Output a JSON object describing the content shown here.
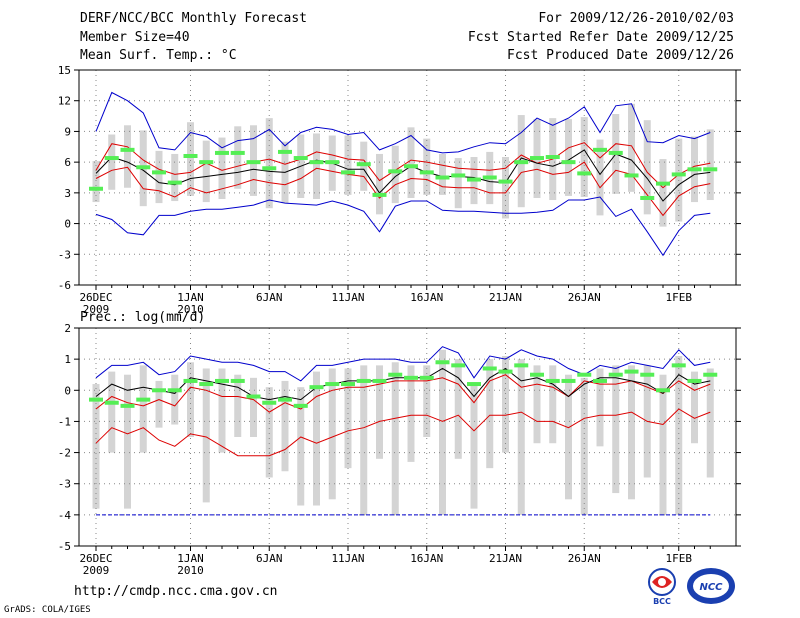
{
  "header": {
    "title": "DERF/NCC/BCC Monthly Forecast",
    "member": "Member Size=40",
    "variable": "Mean Surf. Temp.: °C",
    "period": "For 2009/12/26-2010/02/03",
    "started": "Fcst Started Refer Date 2009/12/25",
    "produced": "Fcst Produced Date 2009/12/26"
  },
  "footer": {
    "url": "http://cmdp.ncc.cma.gov.cn",
    "credit": "GrADS: COLA/IGES",
    "logo_bcc": "BCC",
    "logo_ncc": "NCC"
  },
  "colors": {
    "box": "#d4d4d4",
    "ensemble_mean": "#000000",
    "std_band": "#dd0000",
    "extremes": "#0000cc",
    "climatology": "#55ee55",
    "grid": "#888888"
  },
  "chart_data": [
    {
      "type": "line",
      "title": "Mean Surf. Temp.: °C",
      "ylim": [
        -6,
        15
      ],
      "yticks": [
        -6,
        -3,
        0,
        3,
        6,
        9,
        12,
        15
      ],
      "x_tick_labels": [
        {
          "day": 0,
          "label": "26DEC",
          "sub": "2009"
        },
        {
          "day": 6,
          "label": "1JAN",
          "sub": "2010"
        },
        {
          "day": 11,
          "label": "6JAN",
          "sub": ""
        },
        {
          "day": 16,
          "label": "11JAN",
          "sub": ""
        },
        {
          "day": 21,
          "label": "16JAN",
          "sub": ""
        },
        {
          "day": 26,
          "label": "21JAN",
          "sub": ""
        },
        {
          "day": 31,
          "label": "26JAN",
          "sub": ""
        },
        {
          "day": 37,
          "label": "1FEB",
          "sub": ""
        }
      ],
      "n_days": 40,
      "series": [
        {
          "name": "max",
          "values": [
            0.9,
            0.4,
            -0.9,
            -1.1,
            0.8,
            0.8,
            1.2,
            1.4,
            1.4,
            1.6,
            1.8,
            2.3,
            2.0,
            1.9,
            1.8,
            2.2,
            1.8,
            1.2,
            -0.8,
            1.7,
            2.2,
            2.2,
            1.3,
            1.2,
            1.2,
            1.1,
            1.0,
            1.0,
            1.1,
            1.3,
            2.3,
            2.3,
            2.6,
            0.7,
            1.4,
            -0.8,
            -3.1,
            -0.7,
            0.8,
            1.0
          ]
        },
        {
          "name": "upper_std",
          "values": [
            5.2,
            7.8,
            7.5,
            6.2,
            5.3,
            4.8,
            5.0,
            5.9,
            5.2,
            5.6,
            6.0,
            6.3,
            5.8,
            6.3,
            7.0,
            6.7,
            6.3,
            6.2,
            4.2,
            5.2,
            6.2,
            6.0,
            5.7,
            5.4,
            5.3,
            5.2,
            5.4,
            6.7,
            5.9,
            6.3,
            7.4,
            7.9,
            6.4,
            7.8,
            7.6,
            5.0,
            3.5,
            4.8,
            5.6,
            5.9
          ]
        },
        {
          "name": "mean",
          "values": [
            4.9,
            6.5,
            6.0,
            5.2,
            4.0,
            3.8,
            4.4,
            4.6,
            4.8,
            5.0,
            5.3,
            5.1,
            5.0,
            5.6,
            6.2,
            5.9,
            5.3,
            5.3,
            3.0,
            4.6,
            5.6,
            5.0,
            4.6,
            4.6,
            4.5,
            4.1,
            4.0,
            6.4,
            5.9,
            5.6,
            6.2,
            7.2,
            4.8,
            6.8,
            6.2,
            4.4,
            2.2,
            3.8,
            4.8,
            5.0
          ]
        },
        {
          "name": "lower_std",
          "values": [
            4.4,
            5.2,
            5.5,
            3.4,
            3.2,
            2.6,
            3.5,
            3.0,
            3.4,
            3.8,
            4.3,
            4.0,
            3.8,
            4.4,
            5.4,
            5.1,
            4.8,
            4.6,
            2.5,
            3.8,
            4.4,
            4.3,
            3.6,
            3.5,
            3.5,
            3.0,
            3.0,
            5.0,
            5.3,
            4.8,
            5.0,
            6.0,
            3.5,
            5.2,
            4.8,
            2.8,
            0.8,
            2.7,
            3.6,
            3.9
          ]
        },
        {
          "name": "min",
          "values": [
            9.0,
            12.8,
            12.0,
            10.8,
            7.4,
            7.2,
            8.9,
            8.5,
            7.4,
            8.1,
            8.3,
            9.2,
            7.6,
            8.9,
            9.4,
            9.2,
            8.7,
            8.9,
            7.2,
            7.8,
            8.6,
            7.2,
            6.9,
            7.0,
            7.5,
            7.9,
            7.8,
            8.9,
            10.3,
            9.6,
            10.3,
            11.4,
            8.9,
            11.5,
            11.7,
            8.0,
            7.9,
            8.6,
            8.3,
            8.9
          ]
        },
        {
          "name": "climatology",
          "values": [
            3.4,
            6.4,
            7.2,
            5.5,
            5.0,
            4.0,
            6.6,
            6.0,
            6.9,
            6.9,
            6.0,
            5.4,
            7.0,
            6.4,
            6.0,
            6.0,
            5.0,
            5.8,
            2.8,
            5.1,
            5.6,
            5.0,
            4.5,
            4.7,
            4.3,
            4.5,
            4.1,
            6.0,
            6.4,
            6.5,
            6.0,
            4.9,
            7.2,
            6.9,
            4.7,
            2.5,
            3.9,
            4.8,
            5.3,
            5.3
          ]
        }
      ],
      "box_low": [
        2.1,
        3.3,
        3.5,
        1.7,
        2.0,
        2.2,
        2.7,
        2.1,
        2.4,
        3.4,
        2.7,
        1.5,
        2.0,
        2.5,
        2.4,
        3.2,
        2.8,
        3.2,
        0.9,
        2.0,
        2.5,
        2.8,
        2.8,
        1.5,
        1.9,
        1.9,
        0.5,
        1.6,
        2.5,
        2.3,
        2.7,
        2.6,
        0.8,
        2.9,
        3.1,
        0.9,
        -0.3,
        0.2,
        2.1,
        2.3
      ],
      "box_high": [
        6.1,
        8.7,
        9.6,
        9.1,
        7.1,
        6.8,
        9.9,
        8.1,
        8.4,
        9.5,
        9.6,
        10.3,
        8.0,
        8.7,
        8.8,
        8.6,
        8.6,
        8.0,
        6.8,
        7.6,
        9.4,
        8.3,
        6.8,
        6.4,
        6.5,
        7.0,
        6.5,
        10.6,
        10.2,
        10.3,
        10.2,
        10.4,
        8.2,
        10.7,
        11.7,
        10.1,
        6.3,
        8.3,
        8.5,
        9.2
      ]
    },
    {
      "type": "line",
      "title": "Prec.: log(mm/d)",
      "ylim": [
        -5,
        2
      ],
      "yticks": [
        -5,
        -4,
        -3,
        -2,
        -1,
        0,
        1,
        2
      ],
      "x_tick_labels": [
        {
          "day": 0,
          "label": "26DEC",
          "sub": "2009"
        },
        {
          "day": 6,
          "label": "1JAN",
          "sub": "2010"
        },
        {
          "day": 11,
          "label": "6JAN",
          "sub": ""
        },
        {
          "day": 16,
          "label": "11JAN",
          "sub": ""
        },
        {
          "day": 21,
          "label": "16JAN",
          "sub": ""
        },
        {
          "day": 26,
          "label": "21JAN",
          "sub": ""
        },
        {
          "day": 31,
          "label": "26JAN",
          "sub": ""
        },
        {
          "day": 37,
          "label": "1FEB",
          "sub": ""
        }
      ],
      "n_days": 40,
      "series": [
        {
          "name": "min",
          "values": [
            -4,
            -4,
            -4,
            -4,
            -4,
            -4,
            -4,
            -4,
            -4,
            -4,
            -4,
            -4,
            -4,
            -4,
            -4,
            -4,
            -4,
            -4,
            -4,
            -4,
            -4,
            -4,
            -4,
            -4,
            -4,
            -4,
            -4,
            -4,
            -4,
            -4,
            -4,
            -4,
            -4,
            -4,
            -4,
            -4,
            -4,
            -4,
            -4,
            -4
          ]
        },
        {
          "name": "lower_std",
          "values": [
            -1.7,
            -1.2,
            -1.4,
            -1.2,
            -1.6,
            -1.8,
            -1.4,
            -1.5,
            -1.8,
            -2.1,
            -2.1,
            -2.1,
            -1.9,
            -1.5,
            -1.7,
            -1.5,
            -1.3,
            -1.2,
            -1.0,
            -0.9,
            -0.8,
            -0.8,
            -1.0,
            -0.8,
            -1.3,
            -0.8,
            -0.8,
            -0.7,
            -1.0,
            -1.0,
            -1.2,
            -0.9,
            -0.8,
            -0.8,
            -0.7,
            -1.0,
            -1.1,
            -0.6,
            -0.9,
            -0.7
          ]
        },
        {
          "name": "upper_std",
          "values": [
            -0.6,
            -0.2,
            -0.4,
            -0.5,
            -0.3,
            -0.5,
            0.1,
            0.0,
            -0.2,
            -0.2,
            -0.3,
            -0.7,
            -0.4,
            -0.6,
            -0.2,
            0.0,
            0.1,
            0.1,
            0.2,
            0.3,
            0.3,
            0.3,
            0.4,
            0.2,
            -0.4,
            0.3,
            0.5,
            0.1,
            0.2,
            0.1,
            -0.2,
            0.3,
            0.2,
            0.2,
            0.3,
            0.1,
            -0.1,
            0.3,
            0.0,
            0.2
          ]
        },
        {
          "name": "mean",
          "values": [
            -0.2,
            0.2,
            0.0,
            0.1,
            0.0,
            -0.1,
            0.4,
            0.3,
            0.2,
            0.1,
            -0.2,
            -0.3,
            -0.2,
            -0.3,
            0.1,
            0.2,
            0.3,
            0.3,
            0.3,
            0.4,
            0.4,
            0.4,
            0.7,
            0.4,
            -0.2,
            0.4,
            0.7,
            0.3,
            0.4,
            0.2,
            -0.2,
            0.2,
            0.4,
            0.4,
            0.3,
            0.2,
            -0.1,
            0.5,
            0.2,
            0.3
          ]
        },
        {
          "name": "max",
          "values": [
            0.4,
            0.8,
            0.8,
            0.9,
            0.5,
            0.6,
            1.1,
            1.0,
            0.9,
            0.9,
            0.8,
            0.6,
            0.6,
            0.3,
            0.8,
            0.8,
            0.9,
            1.0,
            1.0,
            1.0,
            0.9,
            0.9,
            1.4,
            1.2,
            0.4,
            1.1,
            1.0,
            1.3,
            1.1,
            1.0,
            0.7,
            0.5,
            0.8,
            0.7,
            0.9,
            0.8,
            0.7,
            1.3,
            0.8,
            0.9
          ]
        },
        {
          "name": "climatology",
          "values": [
            -0.3,
            -0.4,
            -0.5,
            -0.3,
            0.0,
            0.0,
            0.3,
            0.2,
            0.3,
            0.3,
            -0.2,
            -0.4,
            -0.3,
            -0.5,
            0.1,
            0.2,
            0.2,
            0.3,
            0.3,
            0.5,
            0.4,
            0.4,
            0.9,
            0.8,
            0.2,
            0.7,
            0.6,
            0.8,
            0.5,
            0.3,
            0.3,
            0.5,
            0.3,
            0.5,
            0.6,
            0.5,
            0.0,
            0.8,
            0.3,
            0.5
          ]
        }
      ],
      "box_low": [
        -3.8,
        -2.0,
        -3.8,
        -2.0,
        -1.2,
        -1.1,
        -1.5,
        -3.6,
        -2.0,
        -1.5,
        -1.5,
        -2.8,
        -2.6,
        -3.7,
        -3.7,
        -3.5,
        -2.5,
        -4,
        -2.2,
        -4,
        -2.3,
        -1.5,
        -4,
        -2.2,
        -3.8,
        -2.5,
        -2.0,
        -4,
        -1.7,
        -1.7,
        -3.5,
        -4,
        -1.8,
        -3.3,
        -3.5,
        -2.8,
        -4,
        -4,
        -1.7,
        -2.8
      ],
      "box_high": [
        0.2,
        0.6,
        0.5,
        0.8,
        0.3,
        0.5,
        0.9,
        0.7,
        0.7,
        0.5,
        0.4,
        0.1,
        0.3,
        0.1,
        0.6,
        0.7,
        0.7,
        0.8,
        0.8,
        0.9,
        0.8,
        0.8,
        1.3,
        1.0,
        0.2,
        1.0,
        1.1,
        1.0,
        0.8,
        0.8,
        0.5,
        0.4,
        0.7,
        0.8,
        0.8,
        0.8,
        0.5,
        1.1,
        0.6,
        0.7
      ]
    }
  ]
}
